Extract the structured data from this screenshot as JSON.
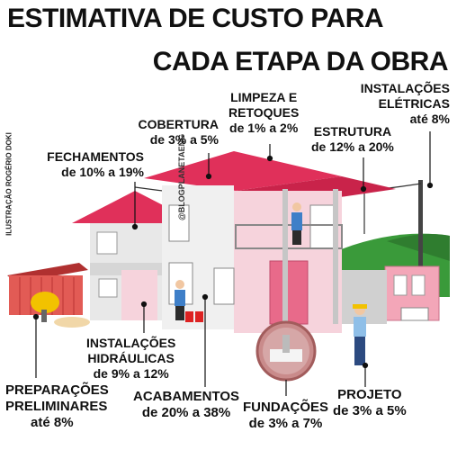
{
  "title": {
    "line1": "ESTIMATIVA DE CUSTO PARA",
    "line2": "CADA ETAPA DA OBRA"
  },
  "credit": "ILUSTRAÇÃO ROGÉRIO DOKI",
  "handle": "@BLOGPLANETAENG",
  "stages": {
    "instalacoes_eletricas": {
      "name1": "INSTALAÇÕES",
      "name2": "ELÉTRICAS",
      "range": "até 8%"
    },
    "limpeza": {
      "name1": "LIMPEZA E",
      "name2": "RETOQUES",
      "range": "de 1% a 2%"
    },
    "cobertura": {
      "name": "COBERTURA",
      "range": "de 3% a 5%"
    },
    "estrutura": {
      "name": "ESTRUTURA",
      "range": "de 12% a 20%"
    },
    "fechamentos": {
      "name": "FECHAMENTOS",
      "range": "de 10% a 19%"
    },
    "instalacoes_hidraulicas": {
      "name1": "INSTALAÇÕES",
      "name2": "HIDRÁULICAS",
      "range": "de 9% a 12%"
    },
    "preparacoes": {
      "name1": "PREPARAÇÕES",
      "name2": "PRELIMINARES",
      "range": "até 8%"
    },
    "acabamentos": {
      "name": "ACABAMENTOS",
      "range": "de 20% a 38%"
    },
    "fundacoes": {
      "name": "FUNDAÇÕES",
      "range": "de 3% a 7%"
    },
    "projeto": {
      "name": "PROJETO",
      "range": "de 3% a 5%"
    }
  },
  "colors": {
    "accent": "#e0305a",
    "pink_light": "#f6d3dc",
    "grey": "#b9b9b9",
    "green": "#3a9a3a"
  }
}
